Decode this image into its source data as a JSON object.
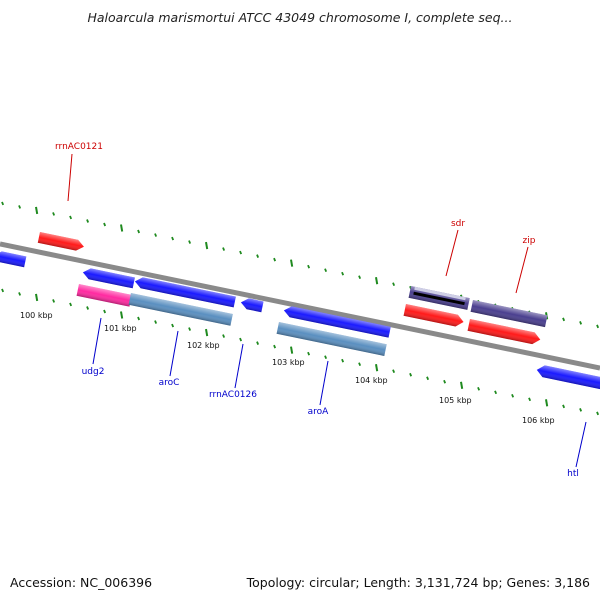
{
  "title": "Haloarcula marismortui ATCC 43049 chromosome I, complete seq...",
  "footer": {
    "accession": "Accession: NC_006396",
    "summary": "Topology: circular; Length: 3,131,724 bp; Genes: 3,186"
  },
  "scale": {
    "tick_labels": [
      "100 kbp",
      "101 kbp",
      "102 kbp",
      "103 kbp",
      "104 kbp",
      "105 kbp",
      "106 kbp"
    ]
  },
  "colors": {
    "backbone": "#8a8a8a",
    "ticks": "#1f8a1f",
    "forward_cds": "#ff1a1a",
    "reverse_cds": "#1a1aff",
    "rrna": "#ff2aa0",
    "trna": "#5a8fc0",
    "misc": "#4a3f8f",
    "forward_label": "#cc0000",
    "reverse_label": "#0000cc"
  },
  "labels": {
    "forward": [
      "rrnAC0121",
      "sdr",
      "zip"
    ],
    "reverse": [
      "udg2",
      "aroC",
      "rrnAC0126",
      "aroA",
      "htl"
    ]
  }
}
